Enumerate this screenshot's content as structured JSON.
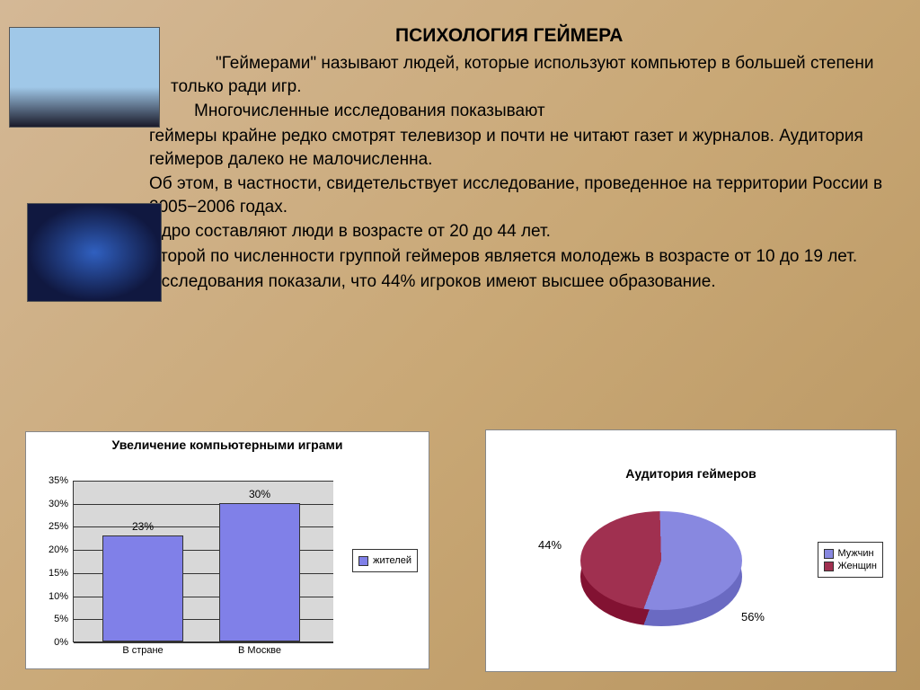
{
  "title": "ПСИХОЛОГИЯ  ГЕЙМЕРА",
  "paragraphs": {
    "p1": "\"Геймерами\" называют людей, которые используют компьютер в большей степени только ради игр.",
    "p2": "Многочисленные исследования показывают",
    "p3": "геймеры крайне редко смотрят телевизор и почти не читают газет и журналов.  Аудитория геймеров далеко не малочисленна.",
    "p4": "Об этом, в частности, свидетельствует исследование, проведенное на территории России в 2005−2006 годах.",
    "p5": "Ядро составляют люди в возрасте от 20 до 44 лет.",
    "p6": "Второй по численности группой геймеров является молодежь в возрасте от 10 до 19 лет.",
    "p7": "Исследования показали, что 44% игроков имеют высшее образование."
  },
  "bar_chart": {
    "title": "Увеличение компьютерными играми",
    "ylim": [
      0,
      35
    ],
    "ytick_step": 5,
    "yticks": [
      "0%",
      "5%",
      "10%",
      "15%",
      "20%",
      "25%",
      "30%",
      "35%"
    ],
    "categories": [
      "В стране",
      "В Москве"
    ],
    "values": [
      23,
      30
    ],
    "value_labels": [
      "23%",
      "30%"
    ],
    "bar_color": "#8080e8",
    "plot_bg": "#d8d8d8",
    "grid_color": "#333333",
    "legend_label": "жителей",
    "legend_swatch": "#8080e8"
  },
  "pie_chart": {
    "title": "Аудитория геймеров",
    "slices": [
      {
        "label": "Мужчин",
        "value": 56,
        "color": "#8888e0"
      },
      {
        "label": "Женщин",
        "value": 44,
        "color": "#a03050"
      }
    ],
    "value_labels": [
      "56%",
      "44%"
    ],
    "legend": [
      "Мужчин",
      "Женщин"
    ]
  },
  "colors": {
    "page_bg_start": "#d4b896",
    "page_bg_end": "#b89560",
    "text": "#000000"
  }
}
